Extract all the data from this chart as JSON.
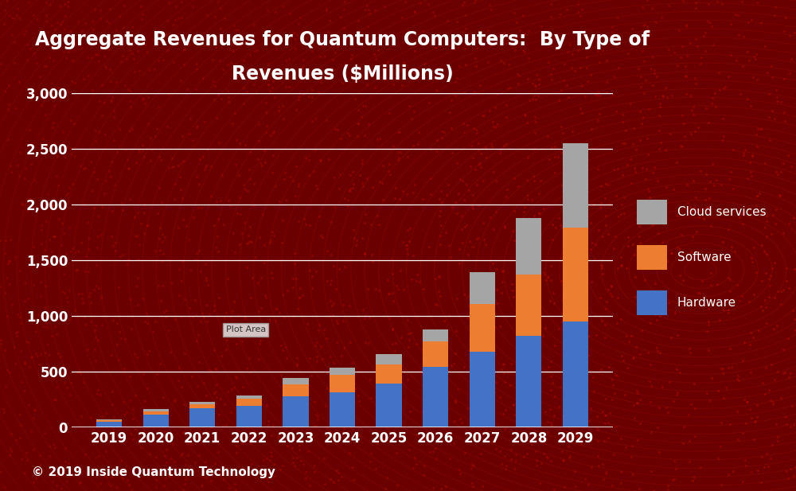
{
  "years": [
    "2019",
    "2020",
    "2021",
    "2022",
    "2023",
    "2024",
    "2025",
    "2026",
    "2027",
    "2028",
    "2029"
  ],
  "hardware": [
    50,
    115,
    170,
    195,
    280,
    315,
    390,
    545,
    680,
    820,
    950
  ],
  "software": [
    12,
    28,
    38,
    58,
    105,
    155,
    170,
    225,
    430,
    550,
    840
  ],
  "cloud": [
    5,
    18,
    22,
    32,
    55,
    65,
    95,
    110,
    280,
    510,
    760
  ],
  "hardware_color": "#4472C4",
  "software_color": "#ED7D31",
  "cloud_color": "#A5A5A5",
  "title_line1": "Aggregate Revenues for Quantum Computers:  By Type of",
  "title_line2": "Revenues ($Millions)",
  "title_color": "#FFFFFF",
  "ylim": [
    0,
    3000
  ],
  "yticks": [
    0,
    500,
    1000,
    1500,
    2000,
    2500,
    3000
  ],
  "legend_labels": [
    "Cloud services",
    "Software",
    "Hardware"
  ],
  "copyright_text": "© 2019 Inside Quantum Technology",
  "plot_area_label": "Plot Area",
  "bg_color": "#6B0000",
  "plot_bg_color": "none",
  "grid_color": "#FFFFFF",
  "tick_color": "#FFFFFF",
  "bar_width": 0.55,
  "title_fontsize": 17,
  "tick_fontsize": 12,
  "legend_fontsize": 11,
  "copyright_fontsize": 11
}
